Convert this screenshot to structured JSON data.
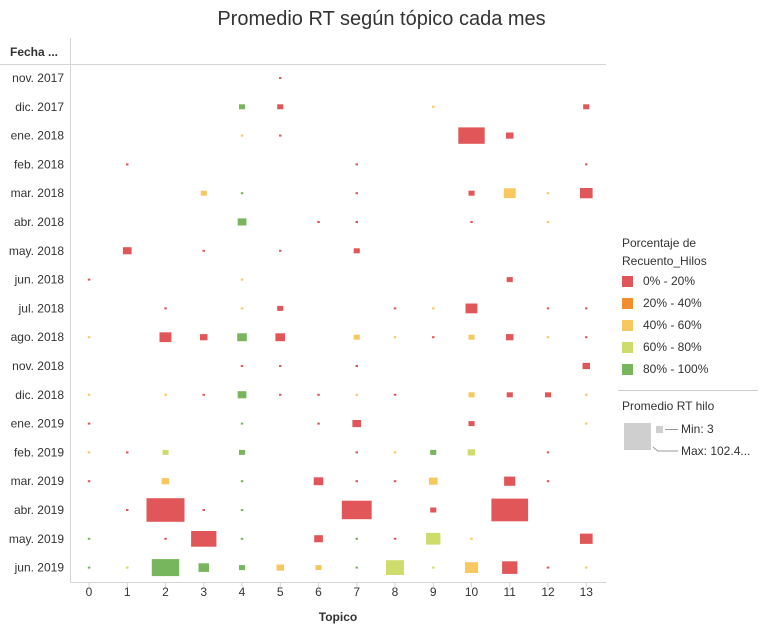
{
  "colors": {
    "c0": "#e15759",
    "c1": "#f28e2b",
    "c2": "#f6c85f",
    "c3": "#cddc6b",
    "c4": "#77b65d",
    "grey": "#cfcfcf"
  },
  "chart_data": {
    "type": "heatmap",
    "title": "Promedio RT según tópico cada mes",
    "row_header": "Fecha ...",
    "xlabel": "Topico",
    "x_ticks": [
      "0",
      "1",
      "2",
      "3",
      "4",
      "5",
      "6",
      "7",
      "8",
      "9",
      "10",
      "11",
      "12",
      "13"
    ],
    "rows": [
      "nov. 2017",
      "dic. 2017",
      "ene. 2018",
      "feb. 2018",
      "mar. 2018",
      "abr. 2018",
      "may. 2018",
      "jun. 2018",
      "jul. 2018",
      "ago. 2018",
      "nov. 2018",
      "dic. 2018",
      "ene. 2019",
      "feb. 2019",
      "mar. 2019",
      "abr. 2019",
      "may. 2019",
      "jun. 2019"
    ],
    "color_legend": {
      "title": "Porcentaje de Recuento_Hilos",
      "bins": [
        "0% - 20%",
        "20% - 40%",
        "40% - 60%",
        "60% - 80%",
        "80% - 100%"
      ]
    },
    "size_legend": {
      "title": "Promedio RT hilo",
      "min_label": "Min: 3",
      "max_label": "Max: 102.4..."
    },
    "cells": [
      {
        "row": "nov. 2017",
        "topic": 5,
        "value": 3,
        "color": "c0"
      },
      {
        "row": "dic. 2017",
        "topic": 4,
        "value": 4,
        "color": "c4"
      },
      {
        "row": "dic. 2017",
        "topic": 5,
        "value": 4,
        "color": "c0"
      },
      {
        "row": "dic. 2017",
        "topic": 9,
        "value": 3,
        "color": "c2"
      },
      {
        "row": "dic. 2017",
        "topic": 13,
        "value": 4,
        "color": "c0"
      },
      {
        "row": "ene. 2018",
        "topic": 4,
        "value": 3,
        "color": "c2"
      },
      {
        "row": "ene. 2018",
        "topic": 5,
        "value": 3,
        "color": "c0"
      },
      {
        "row": "ene. 2018",
        "topic": 10,
        "value": 48,
        "color": "c0"
      },
      {
        "row": "ene. 2018",
        "topic": 11,
        "value": 5,
        "color": "c0"
      },
      {
        "row": "feb. 2018",
        "topic": 1,
        "value": 3,
        "color": "c0"
      },
      {
        "row": "feb. 2018",
        "topic": 7,
        "value": 3,
        "color": "c0"
      },
      {
        "row": "feb. 2018",
        "topic": 13,
        "value": 3,
        "color": "c0"
      },
      {
        "row": "mar. 2018",
        "topic": 3,
        "value": 4,
        "color": "c2"
      },
      {
        "row": "mar. 2018",
        "topic": 4,
        "value": 3,
        "color": "c4"
      },
      {
        "row": "mar. 2018",
        "topic": 7,
        "value": 3,
        "color": "c0"
      },
      {
        "row": "mar. 2018",
        "topic": 10,
        "value": 4,
        "color": "c0"
      },
      {
        "row": "mar. 2018",
        "topic": 11,
        "value": 10,
        "color": "c2"
      },
      {
        "row": "mar. 2018",
        "topic": 12,
        "value": 3,
        "color": "c2"
      },
      {
        "row": "mar. 2018",
        "topic": 13,
        "value": 11,
        "color": "c0"
      },
      {
        "row": "abr. 2018",
        "topic": 4,
        "value": 6,
        "color": "c4"
      },
      {
        "row": "abr. 2018",
        "topic": 6,
        "value": 3,
        "color": "c0"
      },
      {
        "row": "abr. 2018",
        "topic": 7,
        "value": 3,
        "color": "c0"
      },
      {
        "row": "abr. 2018",
        "topic": 10,
        "value": 3,
        "color": "c0"
      },
      {
        "row": "abr. 2018",
        "topic": 12,
        "value": 3,
        "color": "c2"
      },
      {
        "row": "may. 2018",
        "topic": 1,
        "value": 6,
        "color": "c0"
      },
      {
        "row": "may. 2018",
        "topic": 3,
        "value": 3,
        "color": "c0"
      },
      {
        "row": "may. 2018",
        "topic": 5,
        "value": 3,
        "color": "c0"
      },
      {
        "row": "may. 2018",
        "topic": 7,
        "value": 4,
        "color": "c0"
      },
      {
        "row": "jun. 2018",
        "topic": 0,
        "value": 3,
        "color": "c0"
      },
      {
        "row": "jun. 2018",
        "topic": 4,
        "value": 3,
        "color": "c2"
      },
      {
        "row": "jun. 2018",
        "topic": 11,
        "value": 4,
        "color": "c0"
      },
      {
        "row": "jul. 2018",
        "topic": 2,
        "value": 3,
        "color": "c0"
      },
      {
        "row": "jul. 2018",
        "topic": 4,
        "value": 3,
        "color": "c2"
      },
      {
        "row": "jul. 2018",
        "topic": 5,
        "value": 4,
        "color": "c0"
      },
      {
        "row": "jul. 2018",
        "topic": 8,
        "value": 3,
        "color": "c0"
      },
      {
        "row": "jul. 2018",
        "topic": 9,
        "value": 3,
        "color": "c2"
      },
      {
        "row": "jul. 2018",
        "topic": 10,
        "value": 10,
        "color": "c0"
      },
      {
        "row": "jul. 2018",
        "topic": 12,
        "value": 3,
        "color": "c0"
      },
      {
        "row": "jul. 2018",
        "topic": 13,
        "value": 3,
        "color": "c0"
      },
      {
        "row": "ago. 2018",
        "topic": 0,
        "value": 3,
        "color": "c2"
      },
      {
        "row": "ago. 2018",
        "topic": 2,
        "value": 10,
        "color": "c0"
      },
      {
        "row": "ago. 2018",
        "topic": 3,
        "value": 5,
        "color": "c0"
      },
      {
        "row": "ago. 2018",
        "topic": 4,
        "value": 7,
        "color": "c4"
      },
      {
        "row": "ago. 2018",
        "topic": 5,
        "value": 7,
        "color": "c0"
      },
      {
        "row": "ago. 2018",
        "topic": 7,
        "value": 4,
        "color": "c2"
      },
      {
        "row": "ago. 2018",
        "topic": 8,
        "value": 3,
        "color": "c2"
      },
      {
        "row": "ago. 2018",
        "topic": 9,
        "value": 3,
        "color": "c0"
      },
      {
        "row": "ago. 2018",
        "topic": 10,
        "value": 4,
        "color": "c2"
      },
      {
        "row": "ago. 2018",
        "topic": 11,
        "value": 5,
        "color": "c0"
      },
      {
        "row": "ago. 2018",
        "topic": 12,
        "value": 3,
        "color": "c2"
      },
      {
        "row": "ago. 2018",
        "topic": 13,
        "value": 3,
        "color": "c0"
      },
      {
        "row": "nov. 2018",
        "topic": 4,
        "value": 3,
        "color": "c0"
      },
      {
        "row": "nov. 2018",
        "topic": 5,
        "value": 3,
        "color": "c0"
      },
      {
        "row": "nov. 2018",
        "topic": 7,
        "value": 3,
        "color": "c0"
      },
      {
        "row": "nov. 2018",
        "topic": 13,
        "value": 5,
        "color": "c0"
      },
      {
        "row": "dic. 2018",
        "topic": 0,
        "value": 3,
        "color": "c2"
      },
      {
        "row": "dic. 2018",
        "topic": 2,
        "value": 3,
        "color": "c2"
      },
      {
        "row": "dic. 2018",
        "topic": 3,
        "value": 3,
        "color": "c0"
      },
      {
        "row": "dic. 2018",
        "topic": 4,
        "value": 6,
        "color": "c4"
      },
      {
        "row": "dic. 2018",
        "topic": 5,
        "value": 3,
        "color": "c0"
      },
      {
        "row": "dic. 2018",
        "topic": 6,
        "value": 3,
        "color": "c0"
      },
      {
        "row": "dic. 2018",
        "topic": 7,
        "value": 3,
        "color": "c2"
      },
      {
        "row": "dic. 2018",
        "topic": 8,
        "value": 3,
        "color": "c0"
      },
      {
        "row": "dic. 2018",
        "topic": 10,
        "value": 4,
        "color": "c2"
      },
      {
        "row": "dic. 2018",
        "topic": 11,
        "value": 4,
        "color": "c0"
      },
      {
        "row": "dic. 2018",
        "topic": 12,
        "value": 4,
        "color": "c0"
      },
      {
        "row": "dic. 2018",
        "topic": 13,
        "value": 3,
        "color": "c2"
      },
      {
        "row": "ene. 2019",
        "topic": 0,
        "value": 3,
        "color": "c0"
      },
      {
        "row": "ene. 2019",
        "topic": 4,
        "value": 3,
        "color": "c4"
      },
      {
        "row": "ene. 2019",
        "topic": 6,
        "value": 3,
        "color": "c0"
      },
      {
        "row": "ene. 2019",
        "topic": 7,
        "value": 6,
        "color": "c0"
      },
      {
        "row": "ene. 2019",
        "topic": 10,
        "value": 4,
        "color": "c0"
      },
      {
        "row": "ene. 2019",
        "topic": 13,
        "value": 3,
        "color": "c2"
      },
      {
        "row": "feb. 2019",
        "topic": 0,
        "value": 3,
        "color": "c2"
      },
      {
        "row": "feb. 2019",
        "topic": 1,
        "value": 3,
        "color": "c0"
      },
      {
        "row": "feb. 2019",
        "topic": 2,
        "value": 4,
        "color": "c3"
      },
      {
        "row": "feb. 2019",
        "topic": 4,
        "value": 4,
        "color": "c4"
      },
      {
        "row": "feb. 2019",
        "topic": 7,
        "value": 3,
        "color": "c0"
      },
      {
        "row": "feb. 2019",
        "topic": 8,
        "value": 3,
        "color": "c2"
      },
      {
        "row": "feb. 2019",
        "topic": 9,
        "value": 4,
        "color": "c4"
      },
      {
        "row": "feb. 2019",
        "topic": 10,
        "value": 5,
        "color": "c3"
      },
      {
        "row": "feb. 2019",
        "topic": 12,
        "value": 3,
        "color": "c0"
      },
      {
        "row": "mar. 2019",
        "topic": 0,
        "value": 3,
        "color": "c0"
      },
      {
        "row": "mar. 2019",
        "topic": 2,
        "value": 5,
        "color": "c2"
      },
      {
        "row": "mar. 2019",
        "topic": 4,
        "value": 3,
        "color": "c4"
      },
      {
        "row": "mar. 2019",
        "topic": 6,
        "value": 7,
        "color": "c0"
      },
      {
        "row": "mar. 2019",
        "topic": 7,
        "value": 3,
        "color": "c0"
      },
      {
        "row": "mar. 2019",
        "topic": 8,
        "value": 3,
        "color": "c0"
      },
      {
        "row": "mar. 2019",
        "topic": 9,
        "value": 6,
        "color": "c2"
      },
      {
        "row": "mar. 2019",
        "topic": 11,
        "value": 9,
        "color": "c0"
      },
      {
        "row": "mar. 2019",
        "topic": 12,
        "value": 3,
        "color": "c0"
      },
      {
        "row": "abr. 2019",
        "topic": 1,
        "value": 3,
        "color": "c0"
      },
      {
        "row": "abr. 2019",
        "topic": 2,
        "value": 102.4,
        "color": "c0"
      },
      {
        "row": "abr. 2019",
        "topic": 3,
        "value": 3,
        "color": "c0"
      },
      {
        "row": "abr. 2019",
        "topic": 4,
        "value": 3,
        "color": "c4"
      },
      {
        "row": "abr. 2019",
        "topic": 7,
        "value": 62,
        "color": "c0"
      },
      {
        "row": "abr. 2019",
        "topic": 9,
        "value": 4,
        "color": "c0"
      },
      {
        "row": "abr. 2019",
        "topic": 11,
        "value": 95,
        "color": "c0"
      },
      {
        "row": "may. 2019",
        "topic": 0,
        "value": 3,
        "color": "c4"
      },
      {
        "row": "may. 2019",
        "topic": 2,
        "value": 3,
        "color": "c0"
      },
      {
        "row": "may. 2019",
        "topic": 3,
        "value": 44,
        "color": "c0"
      },
      {
        "row": "may. 2019",
        "topic": 4,
        "value": 3,
        "color": "c4"
      },
      {
        "row": "may. 2019",
        "topic": 6,
        "value": 6,
        "color": "c0"
      },
      {
        "row": "may. 2019",
        "topic": 7,
        "value": 3,
        "color": "c4"
      },
      {
        "row": "may. 2019",
        "topic": 8,
        "value": 3,
        "color": "c0"
      },
      {
        "row": "may. 2019",
        "topic": 9,
        "value": 14,
        "color": "c3"
      },
      {
        "row": "may. 2019",
        "topic": 10,
        "value": 3,
        "color": "c2"
      },
      {
        "row": "may. 2019",
        "topic": 13,
        "value": 11,
        "color": "c0"
      },
      {
        "row": "jun. 2019",
        "topic": 0,
        "value": 3,
        "color": "c4"
      },
      {
        "row": "jun. 2019",
        "topic": 1,
        "value": 3,
        "color": "c3"
      },
      {
        "row": "jun. 2019",
        "topic": 2,
        "value": 52,
        "color": "c4"
      },
      {
        "row": "jun. 2019",
        "topic": 3,
        "value": 8,
        "color": "c4"
      },
      {
        "row": "jun. 2019",
        "topic": 4,
        "value": 4,
        "color": "c4"
      },
      {
        "row": "jun. 2019",
        "topic": 5,
        "value": 5,
        "color": "c2"
      },
      {
        "row": "jun. 2019",
        "topic": 6,
        "value": 4,
        "color": "c2"
      },
      {
        "row": "jun. 2019",
        "topic": 7,
        "value": 3,
        "color": "c4"
      },
      {
        "row": "jun. 2019",
        "topic": 8,
        "value": 22,
        "color": "c3"
      },
      {
        "row": "jun. 2019",
        "topic": 9,
        "value": 3,
        "color": "c3"
      },
      {
        "row": "jun. 2019",
        "topic": 10,
        "value": 12,
        "color": "c2"
      },
      {
        "row": "jun. 2019",
        "topic": 11,
        "value": 16,
        "color": "c0"
      },
      {
        "row": "jun. 2019",
        "topic": 12,
        "value": 3,
        "color": "c0"
      },
      {
        "row": "jun. 2019",
        "topic": 13,
        "value": 3,
        "color": "c2"
      }
    ]
  }
}
